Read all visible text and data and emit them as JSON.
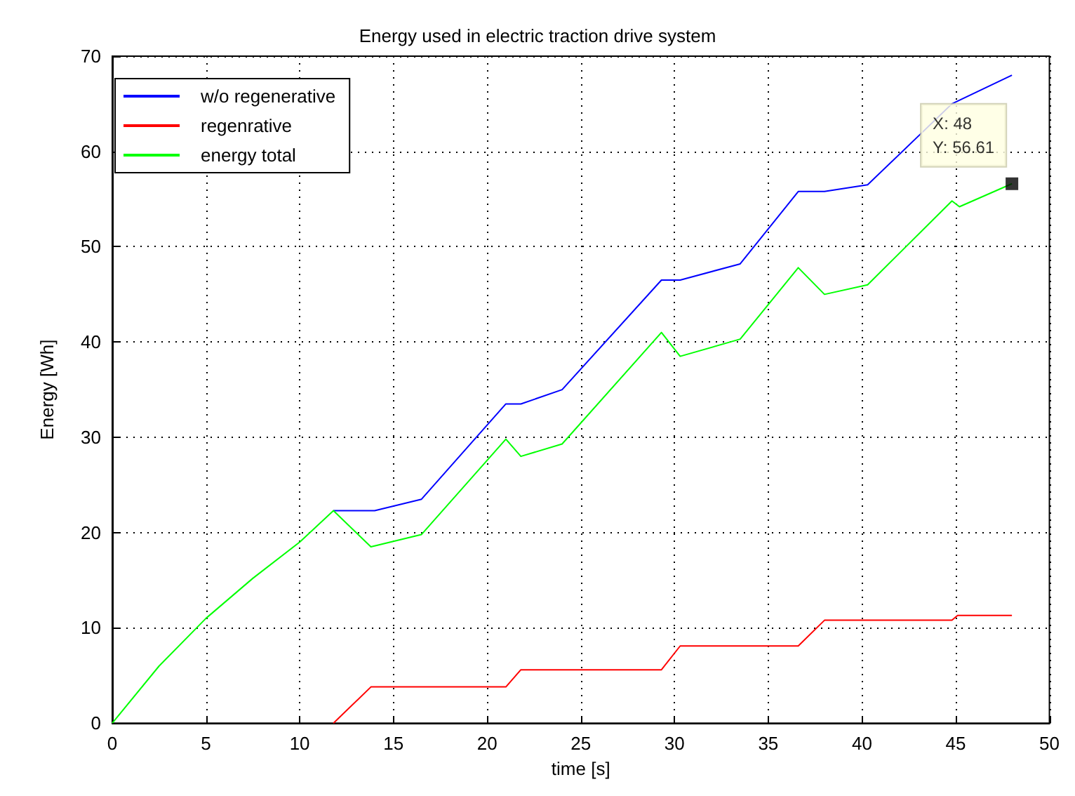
{
  "chart_data": {
    "type": "line",
    "title": "Energy used in electric traction drive system",
    "xlabel": "time [s]",
    "ylabel": "Energy [Wh]",
    "xlim": [
      0,
      50
    ],
    "xticks": [
      0,
      5,
      10,
      15,
      20,
      25,
      30,
      35,
      40,
      45,
      50
    ],
    "ylim": [
      0,
      70
    ],
    "yticks": [
      0,
      10,
      20,
      30,
      40,
      50,
      60,
      70
    ],
    "grid": true,
    "legend": "top left",
    "marker": "none",
    "line_style": "solid",
    "series": [
      {
        "name": "w/o regenerative",
        "color": "#0000ff",
        "x": [
          11.8,
          14,
          16.5,
          21,
          21.8,
          24,
          29.3,
          30.3,
          33.5,
          36.6,
          38,
          40.3,
          44.8,
          48
        ],
        "values": [
          22.3,
          22.3,
          23.5,
          33.5,
          33.5,
          35,
          46.5,
          46.5,
          48.2,
          55.8,
          55.8,
          56.5,
          65,
          68
        ]
      },
      {
        "name": "regenrative",
        "color": "#ff0000",
        "x": [
          11.8,
          13.8,
          21,
          21.8,
          29.3,
          30.3,
          36.6,
          38,
          44.8,
          45.1,
          48
        ],
        "values": [
          0,
          3.8,
          3.8,
          5.6,
          5.6,
          8.1,
          8.1,
          10.8,
          10.8,
          11.3,
          11.3
        ]
      },
      {
        "name": "energy total",
        "color": "#00ff00",
        "x": [
          0,
          2.5,
          5,
          7.5,
          10,
          11.8,
          13.8,
          16.5,
          21,
          21.8,
          24,
          29.3,
          30.3,
          33.5,
          36.6,
          38,
          40.3,
          44.8,
          45.2,
          48
        ],
        "values": [
          0,
          6,
          11,
          15.2,
          19,
          22.3,
          18.5,
          19.8,
          29.8,
          28,
          29.3,
          41,
          38.5,
          40.3,
          47.8,
          45,
          46,
          54.8,
          54.2,
          56.61
        ]
      }
    ],
    "annotations": [
      {
        "text": "X: 48\nY: 56.61",
        "x": 48,
        "y": 56.61
      }
    ]
  }
}
